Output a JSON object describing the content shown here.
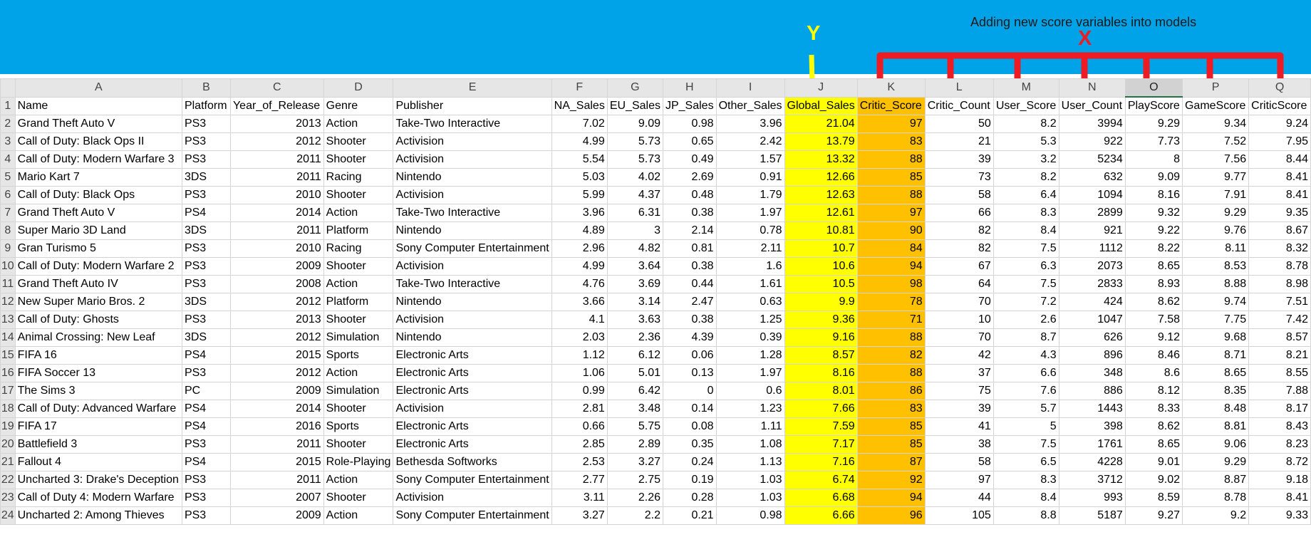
{
  "banner": {
    "caption": "Adding new score variables into models",
    "y_label": "Y",
    "x_label": "X",
    "y_color": "#ffff00",
    "x_color": "#ed1c24",
    "background": "#00a2e8"
  },
  "highlight": {
    "global_sales": "#ffff00",
    "critic_score": "#ffc000"
  },
  "columns": [
    "A",
    "B",
    "C",
    "D",
    "E",
    "F",
    "G",
    "H",
    "I",
    "J",
    "K",
    "L",
    "M",
    "N",
    "O",
    "P",
    "Q"
  ],
  "rows": [
    [
      "Name",
      "Platform",
      "Year_of_Release",
      "Genre",
      "Publisher",
      "NA_Sales",
      "EU_Sales",
      "JP_Sales",
      "Other_Sales",
      "Global_Sales",
      "Critic_Score",
      "Critic_Count",
      "User_Score",
      "User_Count",
      "PlayScore",
      "GameScore",
      "CriticScore"
    ],
    [
      "Grand Theft Auto V",
      "PS3",
      "2013",
      "Action",
      "Take-Two Interactive",
      "7.02",
      "9.09",
      "0.98",
      "3.96",
      "21.04",
      "97",
      "50",
      "8.2",
      "3994",
      "9.29",
      "9.34",
      "9.24"
    ],
    [
      "Call of Duty: Black Ops II",
      "PS3",
      "2012",
      "Shooter",
      "Activision",
      "4.99",
      "5.73",
      "0.65",
      "2.42",
      "13.79",
      "83",
      "21",
      "5.3",
      "922",
      "7.73",
      "7.52",
      "7.95"
    ],
    [
      "Call of Duty: Modern Warfare 3",
      "PS3",
      "2011",
      "Shooter",
      "Activision",
      "5.54",
      "5.73",
      "0.49",
      "1.57",
      "13.32",
      "88",
      "39",
      "3.2",
      "5234",
      "8",
      "7.56",
      "8.44"
    ],
    [
      "Mario Kart 7",
      "3DS",
      "2011",
      "Racing",
      "Nintendo",
      "5.03",
      "4.02",
      "2.69",
      "0.91",
      "12.66",
      "85",
      "73",
      "8.2",
      "632",
      "9.09",
      "9.77",
      "8.41"
    ],
    [
      "Call of Duty: Black Ops",
      "PS3",
      "2010",
      "Shooter",
      "Activision",
      "5.99",
      "4.37",
      "0.48",
      "1.79",
      "12.63",
      "88",
      "58",
      "6.4",
      "1094",
      "8.16",
      "7.91",
      "8.41"
    ],
    [
      "Grand Theft Auto V",
      "PS4",
      "2014",
      "Action",
      "Take-Two Interactive",
      "3.96",
      "6.31",
      "0.38",
      "1.97",
      "12.61",
      "97",
      "66",
      "8.3",
      "2899",
      "9.32",
      "9.29",
      "9.35"
    ],
    [
      "Super Mario 3D Land",
      "3DS",
      "2011",
      "Platform",
      "Nintendo",
      "4.89",
      "3",
      "2.14",
      "0.78",
      "10.81",
      "90",
      "82",
      "8.4",
      "921",
      "9.22",
      "9.76",
      "8.67"
    ],
    [
      "Gran Turismo 5",
      "PS3",
      "2010",
      "Racing",
      "Sony Computer Entertainment",
      "2.96",
      "4.82",
      "0.81",
      "2.11",
      "10.7",
      "84",
      "82",
      "7.5",
      "1112",
      "8.22",
      "8.11",
      "8.32"
    ],
    [
      "Call of Duty: Modern Warfare 2",
      "PS3",
      "2009",
      "Shooter",
      "Activision",
      "4.99",
      "3.64",
      "0.38",
      "1.6",
      "10.6",
      "94",
      "67",
      "6.3",
      "2073",
      "8.65",
      "8.53",
      "8.78"
    ],
    [
      "Grand Theft Auto IV",
      "PS3",
      "2008",
      "Action",
      "Take-Two Interactive",
      "4.76",
      "3.69",
      "0.44",
      "1.61",
      "10.5",
      "98",
      "64",
      "7.5",
      "2833",
      "8.93",
      "8.88",
      "8.98"
    ],
    [
      "New Super Mario Bros. 2",
      "3DS",
      "2012",
      "Platform",
      "Nintendo",
      "3.66",
      "3.14",
      "2.47",
      "0.63",
      "9.9",
      "78",
      "70",
      "7.2",
      "424",
      "8.62",
      "9.74",
      "7.51"
    ],
    [
      "Call of Duty: Ghosts",
      "PS3",
      "2013",
      "Shooter",
      "Activision",
      "4.1",
      "3.63",
      "0.38",
      "1.25",
      "9.36",
      "71",
      "10",
      "2.6",
      "1047",
      "7.58",
      "7.75",
      "7.42"
    ],
    [
      "Animal Crossing: New Leaf",
      "3DS",
      "2012",
      "Simulation",
      "Nintendo",
      "2.03",
      "2.36",
      "4.39",
      "0.39",
      "9.16",
      "88",
      "70",
      "8.7",
      "626",
      "9.12",
      "9.68",
      "8.57"
    ],
    [
      "FIFA 16",
      "PS4",
      "2015",
      "Sports",
      "Electronic Arts",
      "1.12",
      "6.12",
      "0.06",
      "1.28",
      "8.57",
      "82",
      "42",
      "4.3",
      "896",
      "8.46",
      "8.71",
      "8.21"
    ],
    [
      "FIFA Soccer 13",
      "PS3",
      "2012",
      "Action",
      "Electronic Arts",
      "1.06",
      "5.01",
      "0.13",
      "1.97",
      "8.16",
      "88",
      "37",
      "6.6",
      "348",
      "8.6",
      "8.65",
      "8.55"
    ],
    [
      "The Sims 3",
      "PC",
      "2009",
      "Simulation",
      "Electronic Arts",
      "0.99",
      "6.42",
      "0",
      "0.6",
      "8.01",
      "86",
      "75",
      "7.6",
      "886",
      "8.12",
      "8.35",
      "7.88"
    ],
    [
      "Call of Duty: Advanced Warfare",
      "PS4",
      "2014",
      "Shooter",
      "Activision",
      "2.81",
      "3.48",
      "0.14",
      "1.23",
      "7.66",
      "83",
      "39",
      "5.7",
      "1443",
      "8.33",
      "8.48",
      "8.17"
    ],
    [
      "FIFA 17",
      "PS4",
      "2016",
      "Sports",
      "Electronic Arts",
      "0.66",
      "5.75",
      "0.08",
      "1.11",
      "7.59",
      "85",
      "41",
      "5",
      "398",
      "8.62",
      "8.81",
      "8.43"
    ],
    [
      "Battlefield 3",
      "PS3",
      "2011",
      "Shooter",
      "Electronic Arts",
      "2.85",
      "2.89",
      "0.35",
      "1.08",
      "7.17",
      "85",
      "38",
      "7.5",
      "1761",
      "8.65",
      "9.06",
      "8.23"
    ],
    [
      "Fallout 4",
      "PS4",
      "2015",
      "Role-Playing",
      "Bethesda Softworks",
      "2.53",
      "3.27",
      "0.24",
      "1.13",
      "7.16",
      "87",
      "58",
      "6.5",
      "4228",
      "9.01",
      "9.29",
      "8.72"
    ],
    [
      "Uncharted 3: Drake's Deception",
      "PS3",
      "2011",
      "Action",
      "Sony Computer Entertainment",
      "2.77",
      "2.75",
      "0.19",
      "1.03",
      "6.74",
      "92",
      "97",
      "8.3",
      "3712",
      "9.02",
      "8.87",
      "9.18"
    ],
    [
      "Call of Duty 4: Modern Warfare",
      "PS3",
      "2007",
      "Shooter",
      "Activision",
      "3.11",
      "2.26",
      "0.28",
      "1.03",
      "6.68",
      "94",
      "44",
      "8.4",
      "993",
      "8.59",
      "8.78",
      "8.41"
    ],
    [
      "Uncharted 2: Among Thieves",
      "PS3",
      "2009",
      "Action",
      "Sony Computer Entertainment",
      "3.27",
      "2.2",
      "0.21",
      "0.98",
      "6.66",
      "96",
      "105",
      "8.8",
      "5187",
      "9.27",
      "9.2",
      "9.33"
    ]
  ]
}
